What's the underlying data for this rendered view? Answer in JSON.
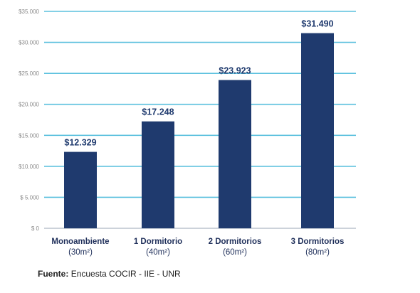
{
  "chart_data": {
    "type": "bar",
    "categories": [
      "Monoambiente",
      "1 Dormitorio",
      "2 Dormitorios",
      "3 Dormitorios"
    ],
    "category_sublabels": [
      "(30m²)",
      "(40m²)",
      "(60m²)",
      "(80m²)"
    ],
    "values": [
      12329,
      17248,
      23923,
      31490
    ],
    "value_labels": [
      "$12.329",
      "$17.248",
      "$23.923",
      "$31.490"
    ],
    "yticks": [
      0,
      5000,
      10000,
      15000,
      20000,
      25000,
      30000,
      35000
    ],
    "ytick_labels": [
      "$ 0",
      "$ 5.000",
      "$10.000",
      "$15.000",
      "$20.000",
      "$25.000",
      "$30.000",
      "$35.000"
    ],
    "ylim": [
      0,
      35000
    ],
    "grid": true,
    "colors": {
      "bar": "#1f3a6e",
      "grid": "#5bc0de",
      "label": "#1f3a6e"
    }
  },
  "source": {
    "label": "Fuente:",
    "text": "Encuesta COCIR - IIE - UNR"
  }
}
